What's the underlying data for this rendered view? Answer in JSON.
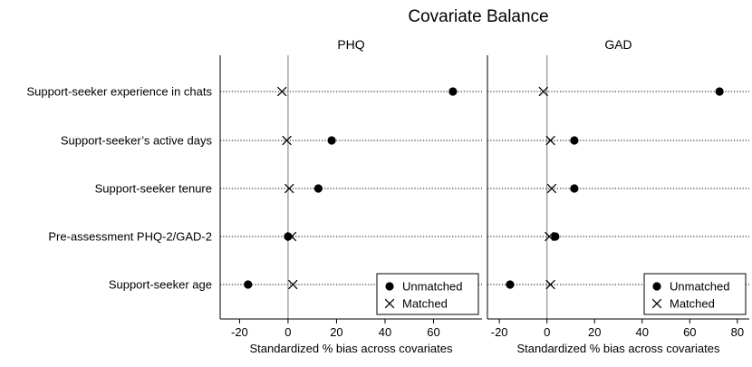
{
  "chart_data": {
    "type": "scatter",
    "title": "Covariate Balance",
    "covariates": [
      "Support-seeker experience in chats",
      "Support-seeker’s active days",
      "Support-seeker tenure",
      "Pre-assessment PHQ-2/GAD-2",
      "Support-seeker age"
    ],
    "legend": {
      "unmatched": "Unmatched",
      "matched": "Matched",
      "placement": "bottom-right"
    },
    "panels": [
      {
        "title": "PHQ",
        "xlabel": "Standardized % bias across covariates",
        "xlim": [
          -28,
          80
        ],
        "xticks": [
          -20,
          0,
          20,
          40,
          60
        ],
        "series": [
          {
            "name": "Unmatched",
            "marker": "dot",
            "values": [
              68,
              18,
              12.5,
              0,
              -16.5
            ]
          },
          {
            "name": "Matched",
            "marker": "x",
            "values": [
              -2.5,
              -0.5,
              0.5,
              1.5,
              2
            ]
          }
        ]
      },
      {
        "title": "GAD",
        "xlabel": "Standardized % bias across covariates",
        "xlim": [
          -25,
          85
        ],
        "xticks": [
          -20,
          0,
          20,
          40,
          60,
          80
        ],
        "series": [
          {
            "name": "Unmatched",
            "marker": "dot",
            "values": [
              72.5,
              11.5,
              11.5,
              3.5,
              -15.5
            ]
          },
          {
            "name": "Matched",
            "marker": "x",
            "values": [
              -1.5,
              1.5,
              2,
              1,
              1.5
            ]
          }
        ]
      }
    ]
  }
}
